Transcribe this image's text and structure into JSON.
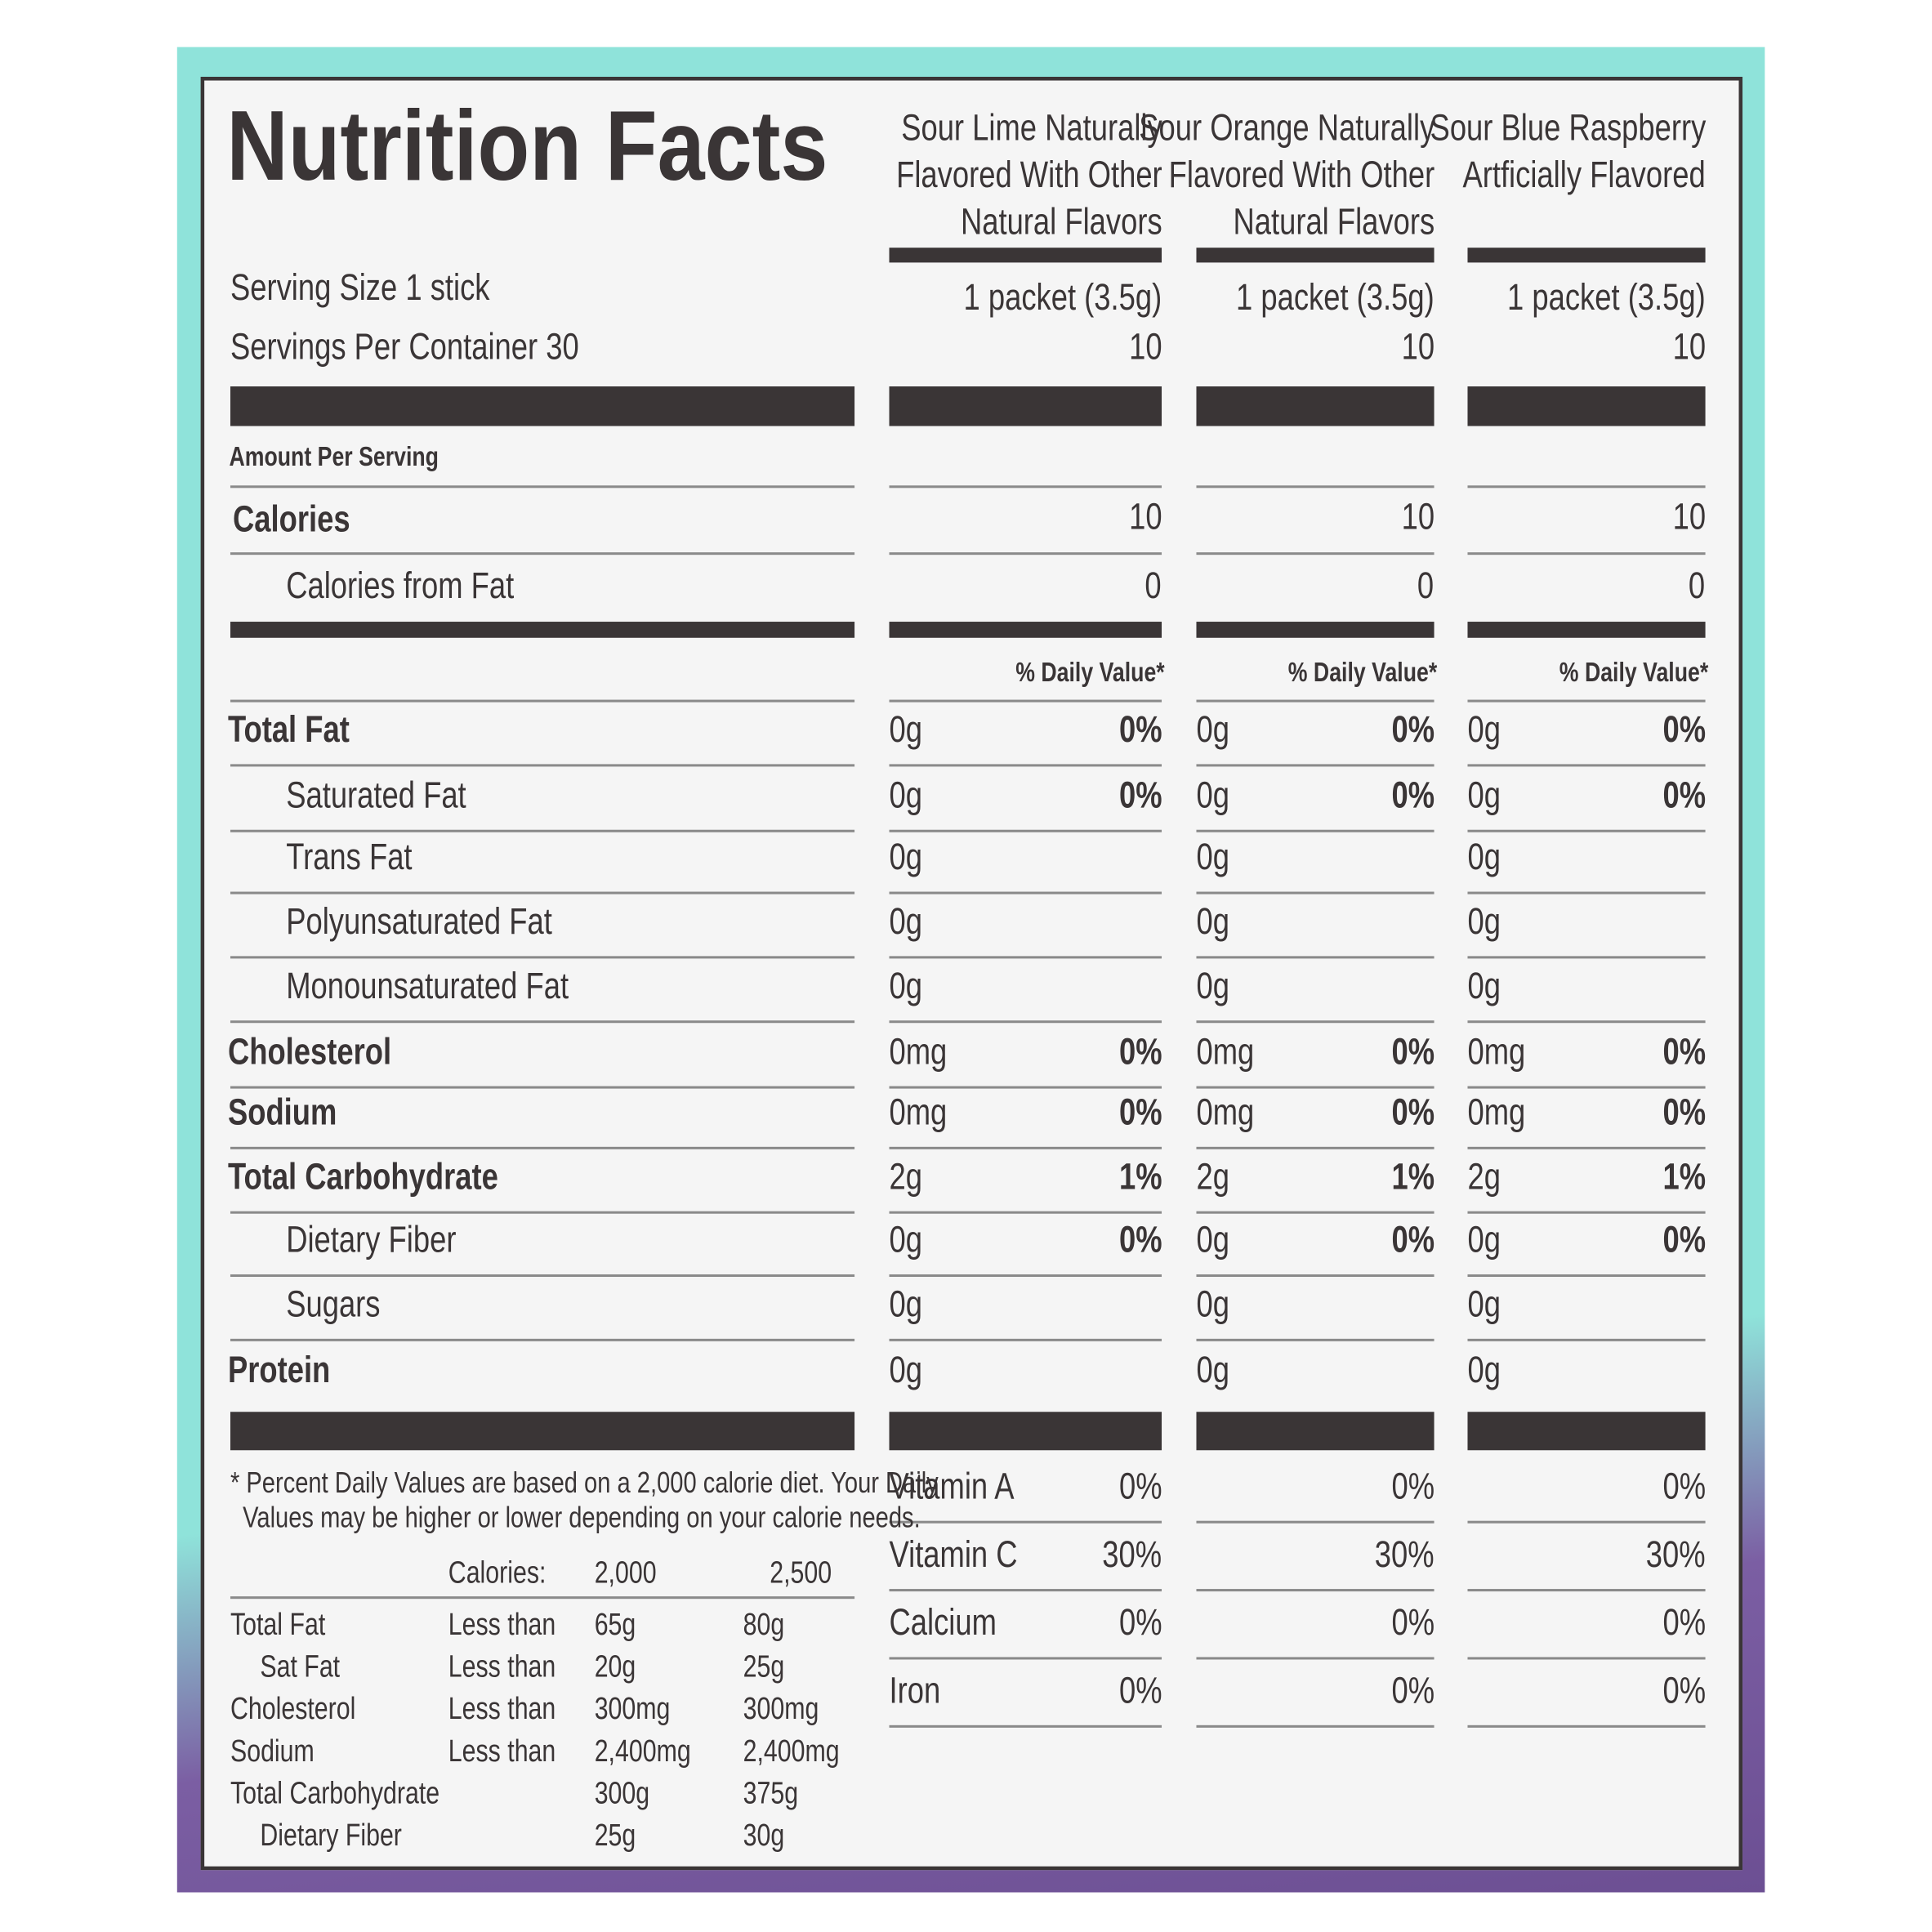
{
  "header": {
    "title": "Nutrition Facts"
  },
  "labels": {
    "serving_size": "Serving Size 1 stick",
    "servings_per_container": "Servings Per Container 30",
    "amount_per_serving": "Amount Per Serving",
    "calories": "Calories",
    "calories_from_fat": "Calories from Fat"
  },
  "products": [
    {
      "name": [
        "Sour Lime Naturally",
        "Flavored With Other",
        "Natural Flavors"
      ],
      "serving_size": "1 packet (3.5g)",
      "servings": "10",
      "calories": "10",
      "calories_from_fat": "0",
      "dv_header": "% Daily Value*"
    },
    {
      "name": [
        "Sour Orange Naturally",
        "Flavored With Other",
        "Natural Flavors"
      ],
      "serving_size": "1 packet (3.5g)",
      "servings": "10",
      "calories": "10",
      "calories_from_fat": "0",
      "dv_header": "% Daily Value*"
    },
    {
      "name": [
        "Sour Blue Raspberry",
        "Artficially Flavored"
      ],
      "serving_size": "1 packet (3.5g)",
      "servings": "10",
      "calories": "10",
      "calories_from_fat": "0",
      "dv_header": "% Daily Value*"
    }
  ],
  "nutrients": [
    {
      "label": "Total Fat",
      "values": [
        {
          "amount": "0g",
          "dv": "0%"
        },
        {
          "amount": "0g",
          "dv": "0%"
        },
        {
          "amount": "0g",
          "dv": "0%"
        }
      ],
      "sub": [
        {
          "label": "Saturated Fat",
          "values": [
            {
              "amount": "0g",
              "dv": "0%"
            },
            {
              "amount": "0g",
              "dv": "0%"
            },
            {
              "amount": "0g",
              "dv": "0%"
            }
          ]
        },
        {
          "label": "Trans Fat",
          "values": [
            {
              "amount": "0g"
            },
            {
              "amount": "0g"
            },
            {
              "amount": "0g"
            }
          ]
        },
        {
          "label": "Polyunsaturated Fat",
          "values": [
            {
              "amount": "0g"
            },
            {
              "amount": "0g"
            },
            {
              "amount": "0g"
            }
          ]
        },
        {
          "label": "Monounsaturated Fat",
          "values": [
            {
              "amount": "0g"
            },
            {
              "amount": "0g"
            },
            {
              "amount": "0g"
            }
          ]
        }
      ]
    },
    {
      "label": "Cholesterol",
      "values": [
        {
          "amount": "0mg",
          "dv": "0%"
        },
        {
          "amount": "0mg",
          "dv": "0%"
        },
        {
          "amount": "0mg",
          "dv": "0%"
        }
      ]
    },
    {
      "label": "Sodium",
      "values": [
        {
          "amount": "0mg",
          "dv": "0%"
        },
        {
          "amount": "0mg",
          "dv": "0%"
        },
        {
          "amount": "0mg",
          "dv": "0%"
        }
      ]
    },
    {
      "label": "Total Carbohydrate",
      "values": [
        {
          "amount": "2g",
          "dv": "1%"
        },
        {
          "amount": "2g",
          "dv": "1%"
        },
        {
          "amount": "2g",
          "dv": "1%"
        }
      ],
      "sub": [
        {
          "label": "Dietary Fiber",
          "values": [
            {
              "amount": "0g",
              "dv": "0%"
            },
            {
              "amount": "0g",
              "dv": "0%"
            },
            {
              "amount": "0g",
              "dv": "0%"
            }
          ]
        },
        {
          "label": "Sugars",
          "values": [
            {
              "amount": "0g"
            },
            {
              "amount": "0g"
            },
            {
              "amount": "0g"
            }
          ]
        }
      ]
    },
    {
      "label": "Protein",
      "values": [
        {
          "amount": "0g"
        },
        {
          "amount": "0g"
        },
        {
          "amount": "0g"
        }
      ]
    }
  ],
  "vitamins": [
    {
      "name": "Vitamin A",
      "values": [
        "0%",
        "0%",
        "0%"
      ]
    },
    {
      "name": "Vitamin C",
      "values": [
        "30%",
        "30%",
        "30%"
      ]
    },
    {
      "name": "Calcium",
      "values": [
        "0%",
        "0%",
        "0%"
      ]
    },
    {
      "name": "Iron",
      "values": [
        "0%",
        "0%",
        "0%"
      ]
    }
  ],
  "footnote": [
    "* Percent Daily Values are based on a 2,000 calorie diet. Your Daily",
    "Values may be higher or lower depending on your calorie needs."
  ],
  "daily_values_table": {
    "header": [
      "Calories:",
      "2,000",
      "2,500"
    ],
    "rows": [
      {
        "nutrient": "Total Fat",
        "qualifier": "Less than",
        "values": [
          "65g",
          "80g"
        ],
        "sub": [
          {
            "nutrient": "Sat Fat",
            "qualifier": "Less than",
            "values": [
              "20g",
              "25g"
            ]
          }
        ]
      },
      {
        "nutrient": "Cholesterol",
        "qualifier": "Less than",
        "values": [
          "300mg",
          "300mg"
        ]
      },
      {
        "nutrient": "Sodium",
        "qualifier": "Less than",
        "values": [
          "2,400mg",
          "2,400mg"
        ]
      },
      {
        "nutrient": "Total Carbohydrate",
        "values": [
          "300g",
          "375g"
        ],
        "sub": [
          {
            "nutrient": "Dietary Fiber",
            "values": [
              "25g",
              "30g"
            ]
          }
        ]
      }
    ]
  }
}
